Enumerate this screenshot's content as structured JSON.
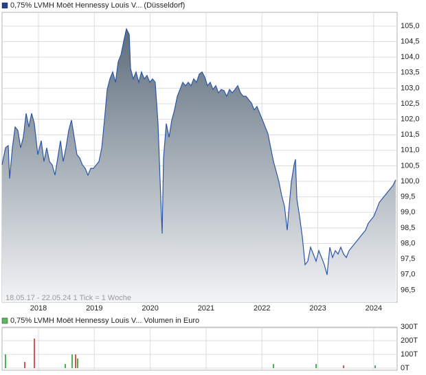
{
  "chart_data": [
    {
      "type": "area",
      "title": "0,75% LVMH Moët Hennessy Louis V... (Düsseldorf)",
      "annotation": "18.05.17 - 22.05.24   1 Tick = 1 Woche",
      "legend_color": "#1f3f8f",
      "color": "#2a55a8",
      "fill_top": "#5d6d7c",
      "fill_bottom": "#f3f4f6",
      "grid": true,
      "xlim": [
        2017.348,
        2024.42
      ],
      "xticks": [
        2018,
        2019,
        2020,
        2021,
        2022,
        2023,
        2024
      ],
      "ylim": [
        96.11,
        105.44
      ],
      "yticks": [
        {
          "value": 96.5,
          "label": "96,5"
        },
        {
          "value": 97.0,
          "label": "97,0"
        },
        {
          "value": 97.5,
          "label": "97,5"
        },
        {
          "value": 98.0,
          "label": "98,0"
        },
        {
          "value": 98.5,
          "label": "98,5"
        },
        {
          "value": 99.0,
          "label": "99,0"
        },
        {
          "value": 99.5,
          "label": "99,5"
        },
        {
          "value": 100.0,
          "label": "100,0"
        },
        {
          "value": 100.5,
          "label": "100,5"
        },
        {
          "value": 101.0,
          "label": "101,0"
        },
        {
          "value": 101.5,
          "label": "101,5"
        },
        {
          "value": 102.0,
          "label": "102,0"
        },
        {
          "value": 102.5,
          "label": "102,5"
        },
        {
          "value": 103.0,
          "label": "103,0"
        },
        {
          "value": 103.5,
          "label": "103,5"
        },
        {
          "value": 104.0,
          "label": "104,0"
        },
        {
          "value": 104.5,
          "label": "104,5"
        },
        {
          "value": 105.0,
          "label": "105,0"
        }
      ],
      "x": [
        2017.348,
        2017.409,
        2017.459,
        2017.483,
        2017.532,
        2017.582,
        2017.631,
        2017.68,
        2017.729,
        2017.778,
        2017.828,
        2017.877,
        2017.926,
        2017.988,
        2018.049,
        2018.098,
        2018.148,
        2018.197,
        2018.246,
        2018.295,
        2018.344,
        2018.394,
        2018.443,
        2018.492,
        2018.541,
        2018.59,
        2018.64,
        2018.689,
        2018.738,
        2018.787,
        2018.836,
        2018.886,
        2018.935,
        2018.984,
        2019.033,
        2019.082,
        2019.132,
        2019.181,
        2019.23,
        2019.279,
        2019.328,
        2019.378,
        2019.427,
        2019.476,
        2019.525,
        2019.574,
        2019.624,
        2019.648,
        2019.697,
        2019.746,
        2019.795,
        2019.844,
        2019.894,
        2019.943,
        2019.992,
        2020.041,
        2020.09,
        2020.14,
        2020.189,
        2020.214,
        2020.238,
        2020.288,
        2020.337,
        2020.386,
        2020.435,
        2020.484,
        2020.534,
        2020.583,
        2020.632,
        2020.681,
        2020.73,
        2020.78,
        2020.829,
        2020.878,
        2020.927,
        2020.976,
        2021.026,
        2021.075,
        2021.124,
        2021.173,
        2021.222,
        2021.272,
        2021.321,
        2021.37,
        2021.419,
        2021.468,
        2021.518,
        2021.567,
        2021.616,
        2021.665,
        2021.714,
        2021.764,
        2021.813,
        2021.862,
        2021.911,
        2021.96,
        2022.01,
        2022.059,
        2022.108,
        2022.157,
        2022.206,
        2022.256,
        2022.305,
        2022.354,
        2022.403,
        2022.452,
        2022.477,
        2022.526,
        2022.575,
        2022.6,
        2022.625,
        2022.674,
        2022.723,
        2022.772,
        2022.821,
        2022.87,
        2022.919,
        2022.969,
        2023.018,
        2023.067,
        2023.116,
        2023.165,
        2023.215,
        2023.264,
        2023.313,
        2023.362,
        2023.411,
        2023.461,
        2023.51,
        2023.559,
        2023.608,
        2023.657,
        2023.707,
        2023.756,
        2023.805,
        2023.854,
        2023.903,
        2023.952,
        2024.001,
        2024.051,
        2024.1,
        2024.149,
        2024.198,
        2024.247,
        2024.297,
        2024.346,
        2024.395
      ],
      "values": [
        100.53,
        101.08,
        101.15,
        100.09,
        101.08,
        101.75,
        101.64,
        101.08,
        101.42,
        102.19,
        101.75,
        102.19,
        101.86,
        100.86,
        101.31,
        100.64,
        101.08,
        100.64,
        100.53,
        100.2,
        100.75,
        101.31,
        100.64,
        101.08,
        101.64,
        101.97,
        101.42,
        100.86,
        100.75,
        100.53,
        100.42,
        100.2,
        100.42,
        100.42,
        100.53,
        100.64,
        101.08,
        101.97,
        102.96,
        103.3,
        103.52,
        103.19,
        103.85,
        104.07,
        104.51,
        104.91,
        104.73,
        103.63,
        103.3,
        103.52,
        103.19,
        103.52,
        103.3,
        103.41,
        103.19,
        103.3,
        103.19,
        101.86,
        99.43,
        98.32,
        100.75,
        101.86,
        101.42,
        101.97,
        102.3,
        102.74,
        102.96,
        103.19,
        103.08,
        103.19,
        103.08,
        103.3,
        103.19,
        103.45,
        103.52,
        103.36,
        103.08,
        103.19,
        102.96,
        103.08,
        102.85,
        102.96,
        102.92,
        102.74,
        102.96,
        102.85,
        102.96,
        103.08,
        102.85,
        102.74,
        102.74,
        102.63,
        102.52,
        102.3,
        102.41,
        102.19,
        101.97,
        101.75,
        101.53,
        101.08,
        100.64,
        100.31,
        99.98,
        99.54,
        99.2,
        98.43,
        98.98,
        99.98,
        100.53,
        100.71,
        99.43,
        98.87,
        98.21,
        97.32,
        97.43,
        97.88,
        97.66,
        97.43,
        97.77,
        97.55,
        97.32,
        96.99,
        97.88,
        97.55,
        97.77,
        97.66,
        97.88,
        97.66,
        97.55,
        97.77,
        97.88,
        97.99,
        98.1,
        98.21,
        98.32,
        98.43,
        98.65,
        98.76,
        98.87,
        99.09,
        99.32,
        99.43,
        99.54,
        99.65,
        99.76,
        99.87,
        100.05
      ]
    },
    {
      "type": "bar",
      "title": "0,75% LVMH Moët Hennessy Louis V... Volumen in Euro",
      "legend_color": "#5cb85c",
      "grid": true,
      "xlim": [
        2017.348,
        2024.42
      ],
      "xticks": [
        2018,
        2019,
        2020,
        2021,
        2022,
        2023,
        2024
      ],
      "ylim": [
        0,
        300000
      ],
      "yticks": [
        {
          "value": 0,
          "label": "0T"
        },
        {
          "value": 100000,
          "label": "100T"
        },
        {
          "value": 200000,
          "label": "200T"
        },
        {
          "value": 300000,
          "label": "300T"
        }
      ],
      "x": [
        2017.409,
        2017.754,
        2017.926,
        2018.48,
        2018.603,
        2018.664,
        2018.701,
        2022.206,
        2022.969,
        2023.461,
        2024.027
      ],
      "values": [
        100000,
        45000,
        215000,
        30000,
        100000,
        100000,
        70000,
        30000,
        30000,
        20000,
        20000
      ],
      "colors": [
        "#4caf50",
        "#d9534f",
        "#d9534f",
        "#4caf50",
        "#4caf50",
        "#d9534f",
        "#4caf50",
        "#4caf50",
        "#4caf50",
        "#d9534f",
        "#4caf50"
      ]
    }
  ]
}
